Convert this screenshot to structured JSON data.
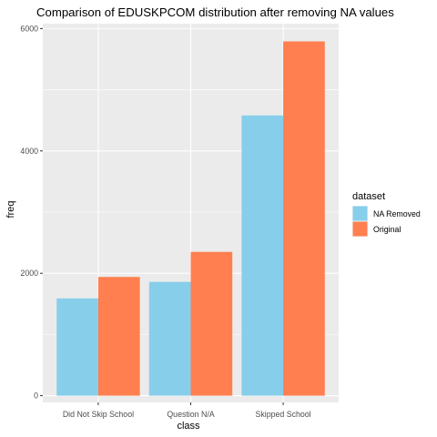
{
  "chart_data": {
    "type": "bar",
    "title": "Comparison of EDUSKPCOM distribution after removing NA values",
    "xlabel": "class",
    "ylabel": "freq",
    "categories": [
      "Did Not Skip School",
      "Question N/A",
      "Skipped School"
    ],
    "series": [
      {
        "name": "NA Removed",
        "color": "#87CEEB",
        "values": [
          1590,
          1860,
          4580
        ]
      },
      {
        "name": "Original",
        "color": "#FF7F50",
        "values": [
          1940,
          2350,
          5790
        ]
      }
    ],
    "ylim": [
      -110,
      6080
    ],
    "yticks": [
      0,
      2000,
      4000,
      6000
    ],
    "y_tick_labels": [
      "0",
      "2000",
      "4000",
      "6000"
    ],
    "grid": true,
    "legend": {
      "title": "dataset",
      "position": "right"
    },
    "panel_background": "#EBEBEB",
    "grid_color": "#FFFFFF"
  }
}
